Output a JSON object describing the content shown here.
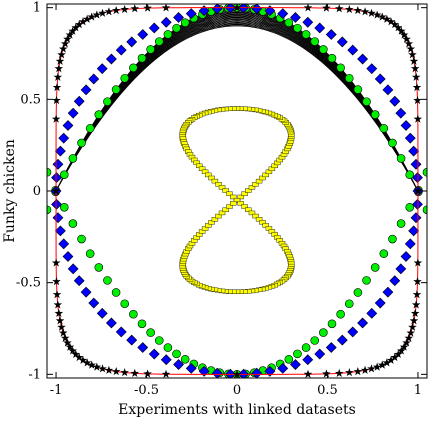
{
  "chart_data": {
    "type": "scatter",
    "xlabel": "Experiments with linked datasets",
    "ylabel": "Funky chicken",
    "xlim": [
      -1.05,
      1.05
    ],
    "ylim": [
      -1.02,
      1.02
    ],
    "xticks": [
      {
        "value": -1,
        "label": "-1"
      },
      {
        "value": -0.5,
        "label": "-0.5"
      },
      {
        "value": 0,
        "label": "0"
      },
      {
        "value": 0.5,
        "label": "0.5"
      },
      {
        "value": 1,
        "label": "1"
      }
    ],
    "yticks": [
      {
        "value": -1,
        "label": "-1"
      },
      {
        "value": -0.5,
        "label": "-0.5"
      },
      {
        "value": 0,
        "label": "0"
      },
      {
        "value": 0.5,
        "label": "0.5"
      },
      {
        "value": 1,
        "label": "1"
      }
    ],
    "grid": false,
    "legend": "none",
    "series": [
      {
        "key": "star-curve",
        "marker": "star",
        "line": true,
        "line_color": "#ff0000",
        "marker_color": "#000000",
        "shape": "superellipse |x|^6 + |y|^6 = 1",
        "points": 104
      },
      {
        "key": "diamond-curve",
        "marker": "diamond",
        "line": false,
        "marker_color": "#0000ff",
        "shape": "circle x^2 + y^2 = 1 (range clipped to plot)",
        "points": 86
      },
      {
        "key": "circle-curve",
        "marker": "circle",
        "line": false,
        "marker_color": "#00ee00",
        "shape": "double parabola y = 1 - x^2 and reflection",
        "points": 90
      },
      {
        "key": "figure-eight",
        "marker": "square",
        "line": false,
        "marker_color": "#ffff00",
        "shape": "figure-eight x = 0.5 sin(2t), y = 0.8 sin(t) ... scaled",
        "points": 180
      },
      {
        "key": "parabola-family",
        "marker": "none",
        "line": true,
        "line_color": "#000000",
        "shape": "family of parabolas y = a(1 - x^2), a in [0.8, 1.0]",
        "count": 30
      }
    ]
  }
}
